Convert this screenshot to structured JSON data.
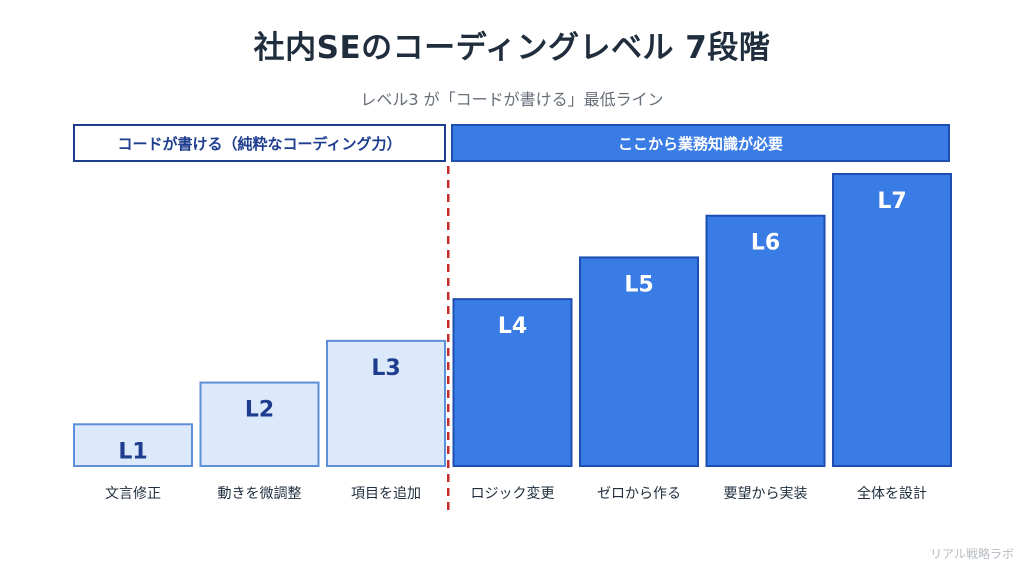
{
  "title": "社内SEのコーディングレベル 7段階",
  "subtitle": "レベル3 が「コードが書ける」最低ライン",
  "sections": {
    "left": "コードが書ける（純粋なコーディング力）",
    "right": "ここから業務知識が必要"
  },
  "watermark": "リアル戦略ラボ",
  "colors": {
    "light_fill": "#dbe9fb",
    "light_stroke": "#5f8fd8",
    "dark_fill": "#3a7ce6",
    "dark_stroke": "#1e4fb0",
    "light_text": "#1e3d8f",
    "dark_text": "#ffffff",
    "divider": "#c62b2b"
  },
  "chart_data": {
    "type": "bar",
    "categories": [
      "文言修正",
      "動きを微調整",
      "項目を追加",
      "ロジック変更",
      "ゼロから作る",
      "要望から実装",
      "全体を設計"
    ],
    "values": [
      1,
      2,
      3,
      4,
      5,
      6,
      7
    ],
    "bar_labels": [
      "L1",
      "L2",
      "L3",
      "L4",
      "L5",
      "L6",
      "L7"
    ],
    "groups": [
      "coding",
      "coding",
      "coding",
      "business",
      "business",
      "business",
      "business"
    ],
    "ylim": [
      0,
      7
    ],
    "grid": false,
    "divider_after_category": 3
  }
}
